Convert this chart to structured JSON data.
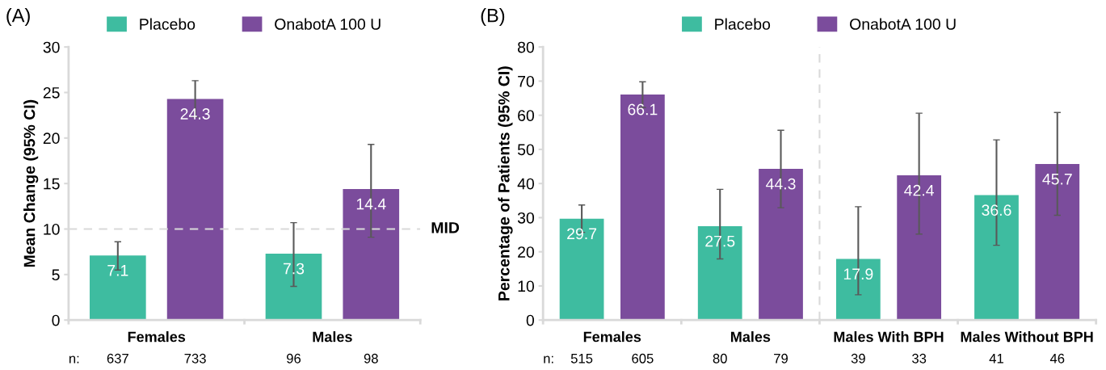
{
  "chart_data": [
    {
      "type": "bar",
      "ylabel": "Mean Change (95% CI)",
      "categories": [
        "Females",
        "Males"
      ],
      "series": [
        {
          "name": "Placebo",
          "color": "#3ebca0",
          "values": [
            7.1,
            7.3
          ],
          "errors": [
            [
              5.5,
              8.6
            ],
            [
              3.7,
              10.7
            ]
          ]
        },
        {
          "name": "OnabotA 100 U",
          "color": "#7b4c9c",
          "values": [
            24.3,
            14.4
          ],
          "errors": [
            [
              22.3,
              26.3
            ],
            [
              9.1,
              19.3
            ]
          ]
        }
      ],
      "ylim": [
        0,
        30
      ],
      "yticks": [
        0,
        5,
        10,
        15,
        20,
        25,
        30
      ],
      "data_labels": true,
      "grid": false,
      "legend": "top",
      "ref_lines": [
        {
          "axis": "y",
          "value": 10,
          "label": "MID",
          "color": "#d9d9d9",
          "line_style": "dashed"
        }
      ],
      "annotations": [
        "(A)",
        "n:",
        "637",
        "733",
        "96",
        "98"
      ]
    },
    {
      "type": "bar",
      "ylabel": "Percentage of Patients (95% CI)",
      "categories": [
        "Females",
        "Males",
        "Males With BPH",
        "Males Without BPH"
      ],
      "series": [
        {
          "name": "Placebo",
          "color": "#3ebca0",
          "values": [
            29.7,
            27.5,
            17.9,
            36.6
          ],
          "errors": [
            [
              25.7,
              33.7
            ],
            [
              17.9,
              38.3
            ],
            [
              7.4,
              33.2
            ],
            [
              21.9,
              52.8
            ]
          ]
        },
        {
          "name": "OnabotA 100 U",
          "color": "#7b4c9c",
          "values": [
            66.1,
            44.3,
            42.4,
            45.7
          ],
          "errors": [
            [
              62.3,
              69.8
            ],
            [
              32.9,
              55.6
            ],
            [
              25.2,
              60.6
            ],
            [
              30.7,
              60.8
            ]
          ]
        }
      ],
      "ylim": [
        0,
        80
      ],
      "yticks": [
        0,
        10,
        20,
        30,
        40,
        50,
        60,
        70,
        80
      ],
      "data_labels": true,
      "grid": false,
      "legend": "top",
      "annotations": [
        "(B)",
        "n:",
        "515",
        "605",
        "80",
        "79",
        "39",
        "33",
        "41",
        "46"
      ]
    }
  ]
}
